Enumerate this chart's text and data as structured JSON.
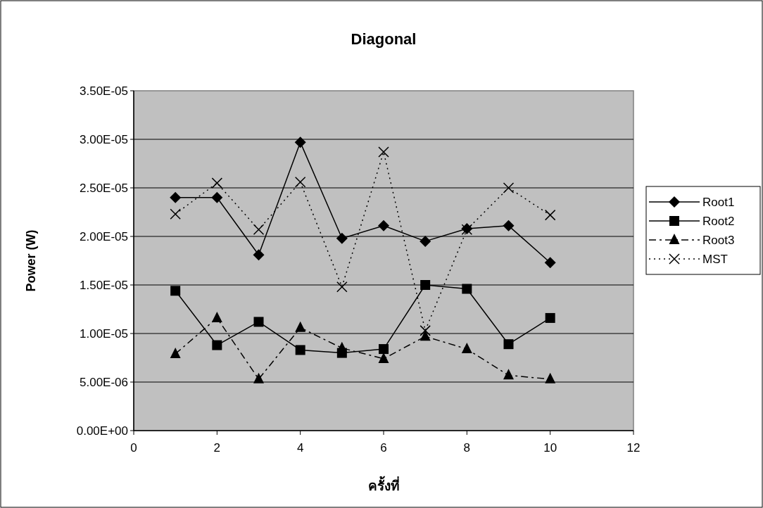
{
  "chart_data": {
    "type": "line",
    "title": "Diagonal",
    "xlabel": "ครั้งที่",
    "ylabel": "Power (W)",
    "x": [
      1,
      2,
      3,
      4,
      5,
      6,
      7,
      8,
      9,
      10
    ],
    "series": [
      {
        "name": "Root1",
        "color": "#000000",
        "marker": "diamond",
        "line_style": "solid",
        "values": [
          2.4e-05,
          2.4e-05,
          1.81e-05,
          2.97e-05,
          1.98e-05,
          2.11e-05,
          1.95e-05,
          2.08e-05,
          2.11e-05,
          1.73e-05
        ]
      },
      {
        "name": "Root2",
        "color": "#000000",
        "marker": "square",
        "line_style": "solid",
        "values": [
          1.44e-05,
          8.8e-06,
          1.12e-05,
          8.3e-06,
          8e-06,
          8.4e-06,
          1.5e-05,
          1.46e-05,
          8.9e-06,
          1.16e-05
        ]
      },
      {
        "name": "Root3",
        "color": "#000000",
        "marker": "triangle",
        "line_style": "dashed",
        "values": [
          7.9e-06,
          1.16e-05,
          5.3e-06,
          1.06e-05,
          8.5e-06,
          7.4e-06,
          9.7e-06,
          8.4e-06,
          5.7e-06,
          5.3e-06
        ]
      },
      {
        "name": "MST",
        "color": "#000000",
        "marker": "cross",
        "line_style": "dotted",
        "values": [
          2.23e-05,
          2.55e-05,
          2.07e-05,
          2.56e-05,
          1.48e-05,
          2.87e-05,
          1.03e-05,
          2.07e-05,
          2.5e-05,
          2.22e-05
        ]
      }
    ],
    "xlim": [
      0,
      12
    ],
    "xticks": [
      0,
      2,
      4,
      6,
      8,
      10,
      12
    ],
    "ylim": [
      0,
      3.5e-05
    ],
    "yticks": [
      {
        "value": 0,
        "label": "0.00E+00"
      },
      {
        "value": 5e-06,
        "label": "5.00E-06"
      },
      {
        "value": 1e-05,
        "label": "1.00E-05"
      },
      {
        "value": 1.5e-05,
        "label": "1.50E-05"
      },
      {
        "value": 2e-05,
        "label": "2.00E-05"
      },
      {
        "value": 2.5e-05,
        "label": "2.50E-05"
      },
      {
        "value": 3e-05,
        "label": "3.00E-05"
      },
      {
        "value": 3.5e-05,
        "label": "3.50E-05"
      }
    ],
    "grid": "y",
    "legend": "right"
  }
}
